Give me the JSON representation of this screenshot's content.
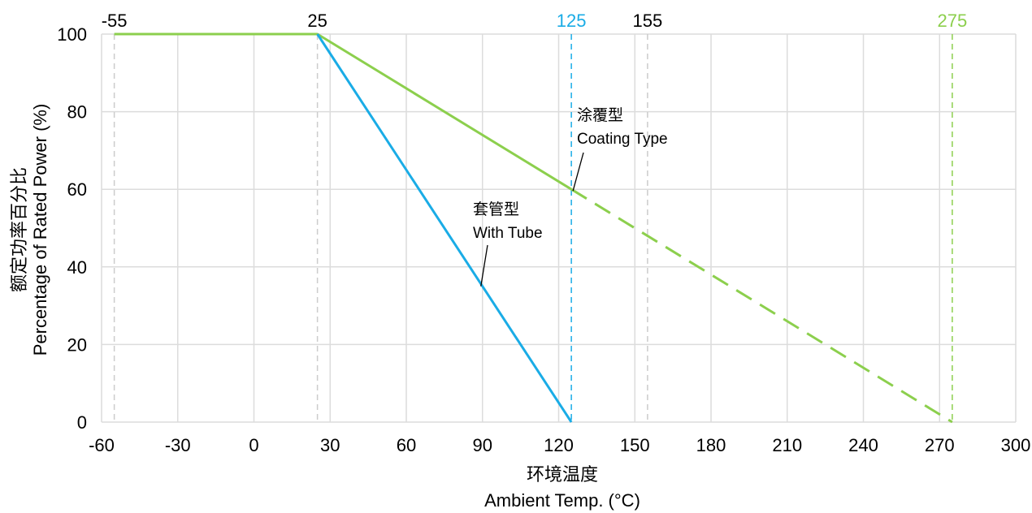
{
  "chart_data": {
    "type": "line",
    "title": "",
    "xlabel": [
      "环境温度",
      "Ambient Temp. (°C)"
    ],
    "ylabel": [
      "额定功率百分比",
      "Percentage of Rated Power (%)"
    ],
    "xlim": [
      -60,
      300
    ],
    "ylim": [
      0,
      100
    ],
    "x_ticks": [
      "-60",
      "-30",
      "0",
      "30",
      "60",
      "90",
      "120",
      "150",
      "180",
      "210",
      "240",
      "270",
      "300"
    ],
    "y_ticks": [
      "0",
      "20",
      "40",
      "60",
      "80",
      "100"
    ],
    "grid": true,
    "colors": {
      "coating": "#8ccf4d",
      "tube": "#1aace6",
      "ref": "#cccccc",
      "grid": "#dcdcdc"
    },
    "series": [
      {
        "name": "涂覆型 Coating Type",
        "color": "#8ccf4d",
        "solid": [
          {
            "x": -55,
            "y": 100
          },
          {
            "x": 25,
            "y": 100
          },
          {
            "x": 125,
            "y": 60
          }
        ],
        "dashed": [
          {
            "x": 125,
            "y": 60
          },
          {
            "x": 275,
            "y": 0
          }
        ]
      },
      {
        "name": "套管型 With Tube",
        "color": "#1aace6",
        "solid": [
          {
            "x": 25,
            "y": 100
          },
          {
            "x": 125,
            "y": 0
          }
        ]
      }
    ],
    "reference_lines": [
      {
        "x": -55,
        "label": "-55",
        "color": "#cccccc",
        "label_color": "#000000"
      },
      {
        "x": 25,
        "label": "25",
        "color": "#cccccc",
        "label_color": "#000000"
      },
      {
        "x": 125,
        "label": "125",
        "color": "#1aace6",
        "label_color": "#1aace6"
      },
      {
        "x": 155,
        "label": "155",
        "color": "#cccccc",
        "label_color": "#000000"
      },
      {
        "x": 275,
        "label": "275",
        "color": "#8ccf4d",
        "label_color": "#8ccf4d"
      }
    ],
    "annotations": [
      {
        "lines": [
          "涂覆型",
          "Coating Type"
        ],
        "points_to": {
          "x": 125,
          "y": 60
        }
      },
      {
        "lines": [
          "套管型",
          "With Tube"
        ],
        "points_to": {
          "x": 90,
          "y": 35
        }
      }
    ]
  }
}
